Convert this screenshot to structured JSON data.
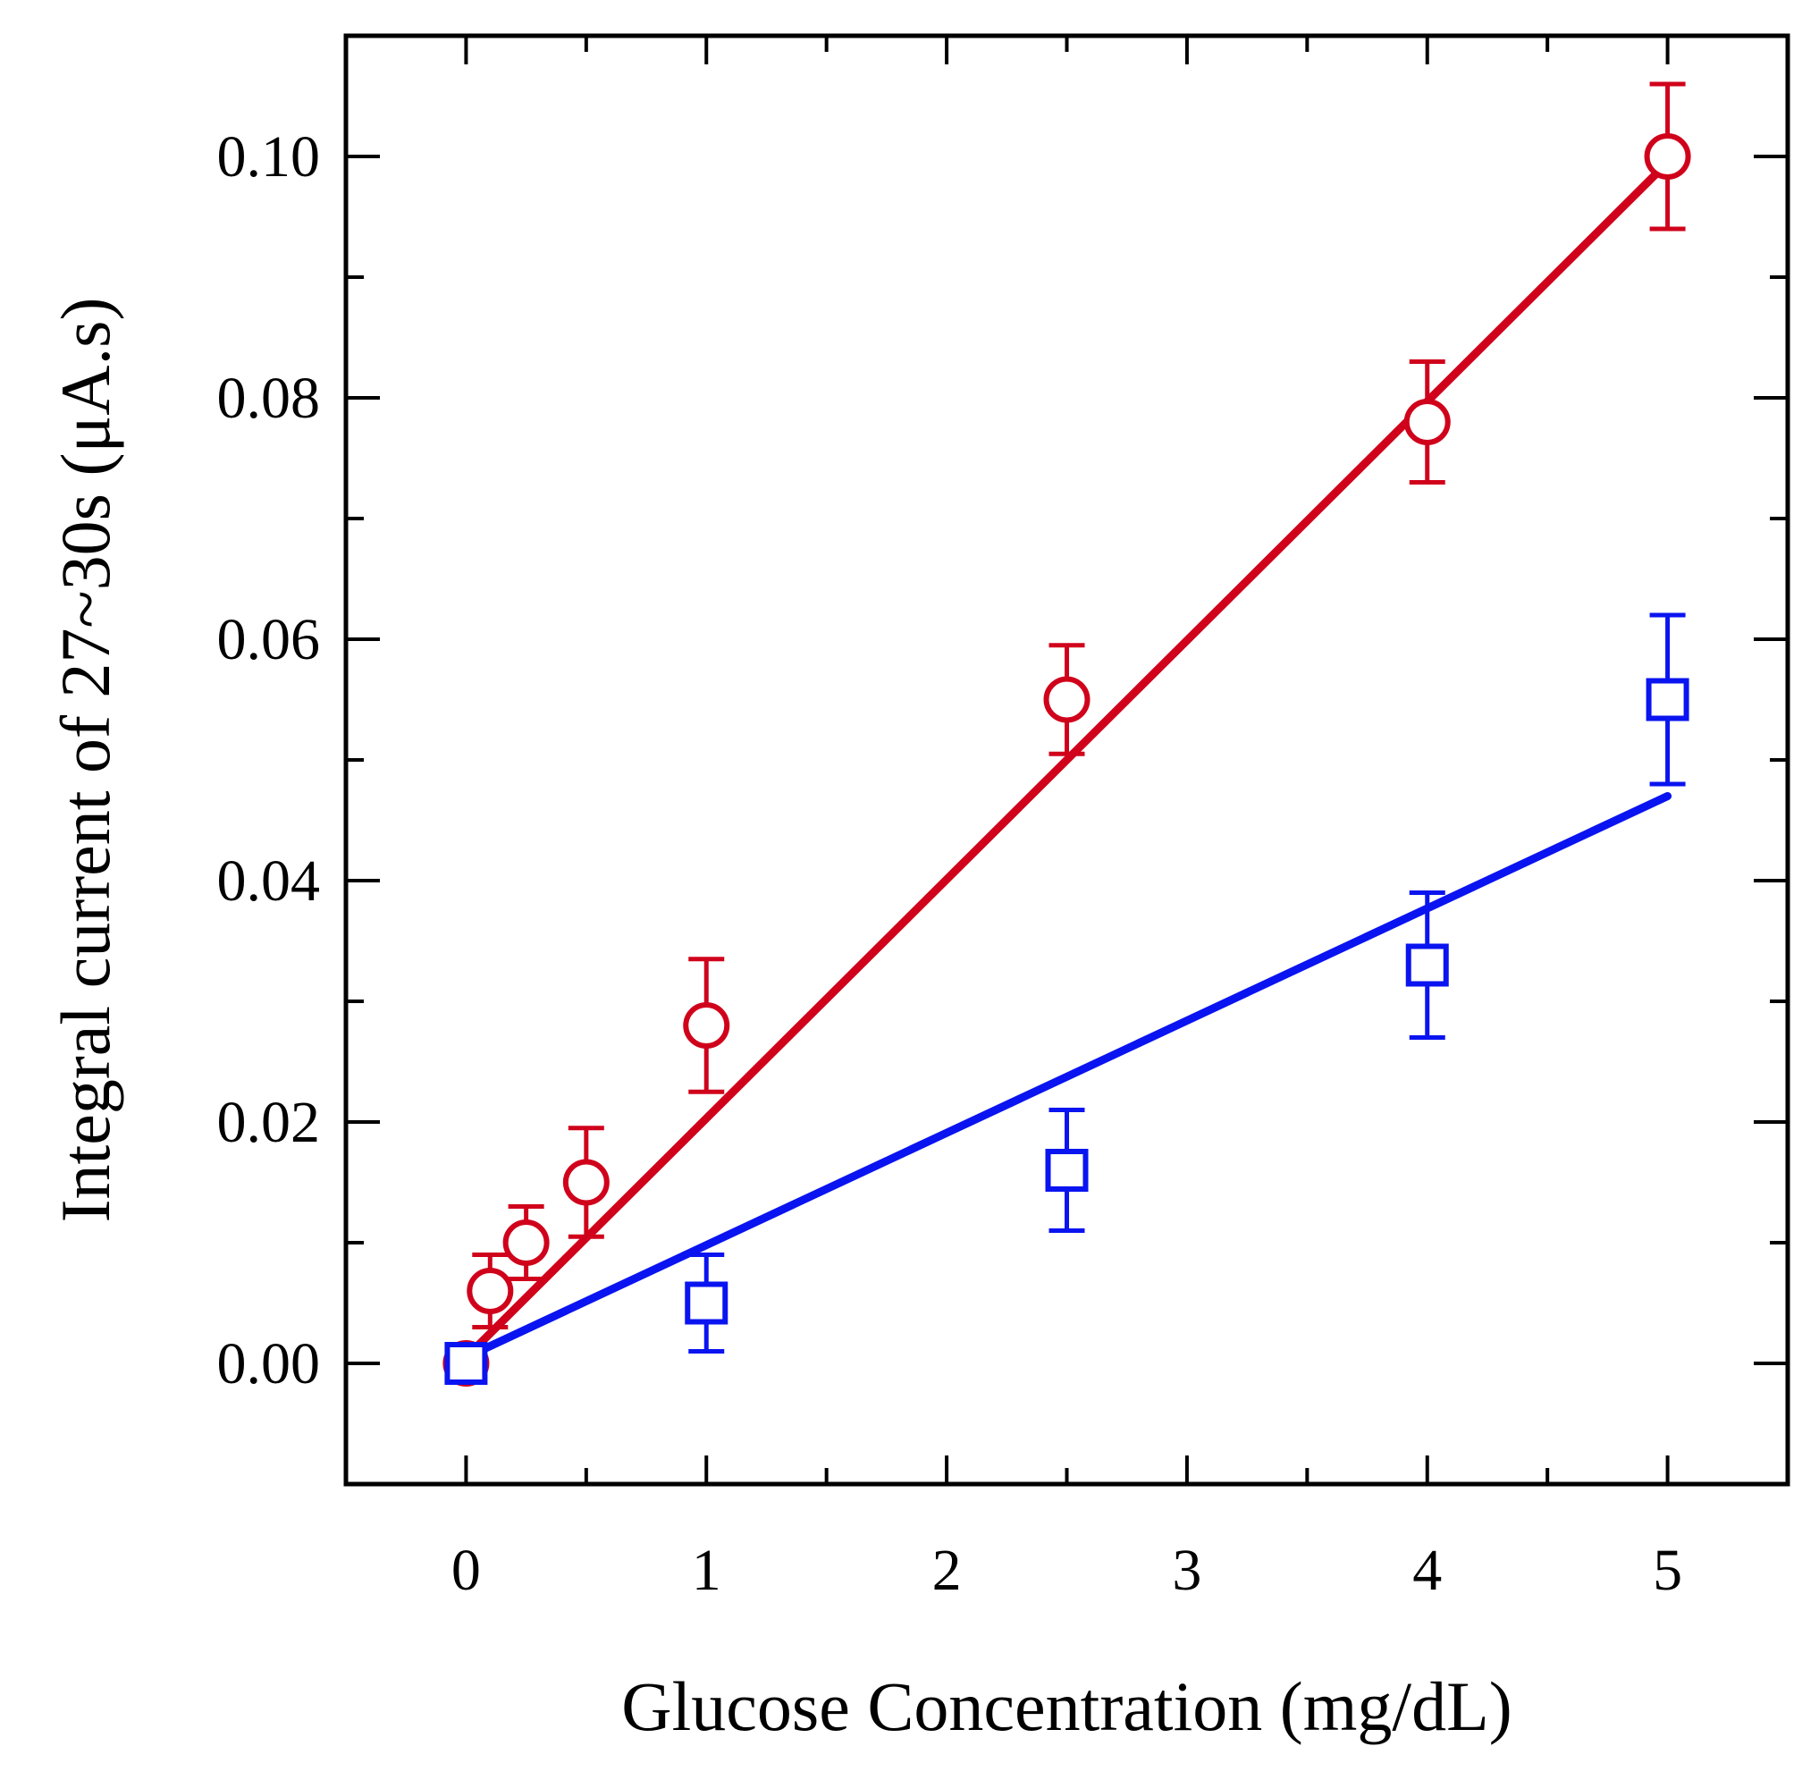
{
  "chart_data": {
    "type": "scatter",
    "title": "",
    "xlabel": "Glucose Concentration (mg/dL)",
    "ylabel": "Integral current of 27~30s (μA.s)",
    "xlim": [
      -0.5,
      5.5
    ],
    "ylim": [
      -0.01,
      0.11
    ],
    "xticks": [
      0,
      1,
      2,
      3,
      4,
      5
    ],
    "xtick_labels": [
      "0",
      "1",
      "2",
      "3",
      "4",
      "5"
    ],
    "xminor_ticks": [
      0.5,
      1.5,
      2.5,
      3.5,
      4.5
    ],
    "yticks": [
      0.0,
      0.02,
      0.04,
      0.06,
      0.08,
      0.1
    ],
    "ytick_labels": [
      "0.00",
      "0.02",
      "0.04",
      "0.06",
      "0.08",
      "0.10"
    ],
    "yminor_ticks": [
      0.01,
      0.03,
      0.05,
      0.07,
      0.09
    ],
    "grid": false,
    "series": [
      {
        "name": "red-circles",
        "marker": "circle",
        "color": "#d0021b",
        "x": [
          0,
          0.1,
          0.25,
          0.5,
          1,
          2.5,
          4,
          5
        ],
        "y": [
          0.0,
          0.006,
          0.01,
          0.015,
          0.028,
          0.055,
          0.078,
          0.1
        ],
        "yerr": [
          0.001,
          0.003,
          0.003,
          0.0045,
          0.0055,
          0.0045,
          0.005,
          0.006
        ],
        "fit": {
          "x": [
            0,
            5
          ],
          "y": [
            0.0005,
            0.0995
          ]
        }
      },
      {
        "name": "blue-squares",
        "marker": "square",
        "color": "#0a14f0",
        "x": [
          0,
          1,
          2.5,
          4,
          5
        ],
        "y": [
          0.0,
          0.005,
          0.016,
          0.033,
          0.055
        ],
        "yerr": [
          0.0015,
          0.004,
          0.005,
          0.006,
          0.007
        ],
        "fit": {
          "x": [
            0,
            5
          ],
          "y": [
            0.0005,
            0.047
          ]
        }
      }
    ]
  }
}
